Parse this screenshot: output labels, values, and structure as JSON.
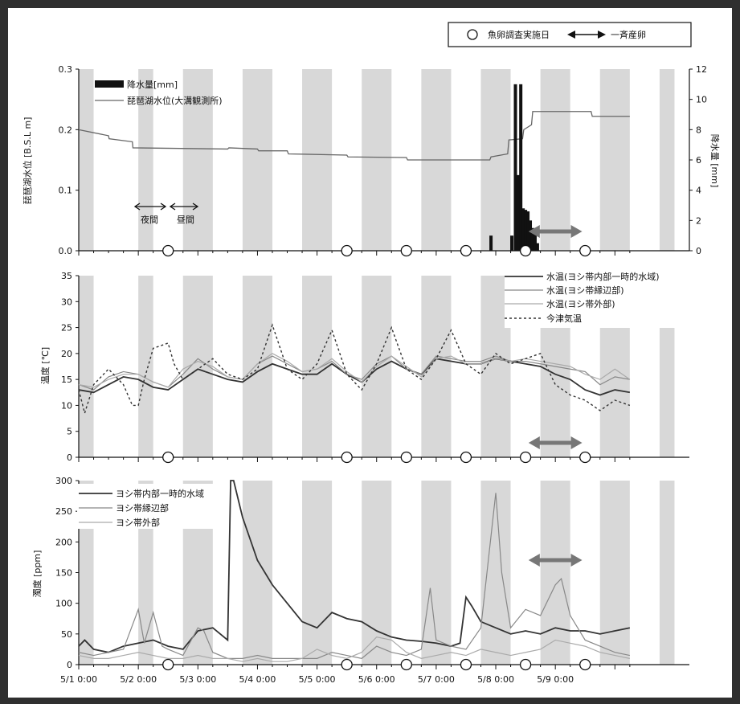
{
  "header_legend": {
    "survey_label": "魚卵調査実施日",
    "spawning_label": "一斉産卵"
  },
  "annotations": {
    "night": "夜間",
    "day": "昼間"
  },
  "survey_days": [
    2.5,
    5.5,
    6.5,
    7.5,
    8.5,
    9.5
  ],
  "spawning_period": [
    8.5,
    9.5
  ],
  "night_bands": [
    [
      0,
      0.25
    ],
    [
      1,
      1.25
    ],
    [
      1.75,
      2.25
    ],
    [
      2.75,
      3.25
    ],
    [
      3.75,
      4.25
    ],
    [
      4.75,
      5.25
    ],
    [
      5.75,
      6.25
    ],
    [
      6.75,
      7.25
    ],
    [
      7.75,
      8.25
    ],
    [
      8.75,
      9.25
    ],
    [
      9.75,
      10
    ]
  ],
  "x_axis": {
    "range": [
      1,
      11.25
    ],
    "ticks": [
      1,
      2,
      3,
      4,
      5,
      6,
      7,
      8,
      9
    ],
    "tick_labels": [
      "5/1 0:00",
      "5/2 0:00",
      "5/3 0:00",
      "5/4 0:00",
      "5/5 0:00",
      "5/6 0:00",
      "5/7 0:00",
      "5/8 0:00",
      "5/9 0:00"
    ]
  },
  "chart_data": [
    {
      "type": "line",
      "ylabel": "琵琶湖水位 [B.S.L m]",
      "y2label": "降水量 [mm]",
      "ylim": [
        0,
        0.3
      ],
      "yticks": [
        0,
        0.1,
        0.2,
        0.3
      ],
      "ytick_labels": [
        "0.0",
        "0.1",
        "0.2",
        "0.3"
      ],
      "y2lim": [
        0,
        12
      ],
      "y2ticks": [
        0,
        2,
        4,
        6,
        8,
        10,
        12
      ],
      "series": [
        {
          "name": "琵琶湖水位(大溝観測所)",
          "x": [
            1,
            1.5,
            1.51,
            1.9,
            1.91,
            3.5,
            3.52,
            4.0,
            4.02,
            4.5,
            4.52,
            5.5,
            5.52,
            6.5,
            6.52,
            7.9,
            7.92,
            8.2,
            8.22,
            8.45,
            8.47,
            8.6,
            8.62,
            9.6,
            9.62,
            10.25
          ],
          "y": [
            0.2,
            0.19,
            0.185,
            0.18,
            0.17,
            0.168,
            0.17,
            0.168,
            0.165,
            0.165,
            0.16,
            0.158,
            0.155,
            0.154,
            0.15,
            0.15,
            0.155,
            0.16,
            0.183,
            0.185,
            0.2,
            0.208,
            0.23,
            0.23,
            0.222,
            0.222
          ]
        },
        {
          "name": "降水量[mm]",
          "type": "bar",
          "x": [
            7.92,
            8.27,
            8.33,
            8.38,
            8.42,
            8.46,
            8.5,
            8.54,
            8.58,
            8.62,
            8.66,
            8.7
          ],
          "y": [
            1,
            1,
            11,
            5,
            11,
            2.8,
            2.7,
            2.6,
            2,
            1.5,
            1.2,
            0.5
          ]
        }
      ]
    },
    {
      "type": "line",
      "ylabel": "温度 [℃]",
      "ylim": [
        0,
        35
      ],
      "yticks": [
        0,
        5,
        10,
        15,
        20,
        25,
        30,
        35
      ],
      "series": [
        {
          "name": "水温(ヨシ帯内部一時的水域)",
          "x": [
            1,
            1.25,
            1.5,
            1.75,
            2,
            2.25,
            2.5,
            2.75,
            3,
            3.25,
            3.5,
            3.75,
            4,
            4.25,
            4.5,
            4.75,
            5,
            5.25,
            5.5,
            5.75,
            6,
            6.25,
            6.5,
            6.75,
            7,
            7.25,
            7.5,
            7.75,
            8,
            8.25,
            8.5,
            8.75,
            9,
            9.25,
            9.5,
            9.75,
            10,
            10.25
          ],
          "y": [
            13,
            12.5,
            14,
            15.5,
            15,
            13.5,
            13,
            15,
            17,
            16,
            15,
            14.5,
            16.5,
            18,
            17,
            16,
            16,
            18,
            16,
            14.5,
            17,
            18.5,
            17,
            16,
            19,
            18.5,
            18,
            18,
            19,
            18.5,
            18,
            17.5,
            16,
            15,
            13,
            12,
            13,
            12.5
          ]
        },
        {
          "name": "水温(ヨシ帯縁辺部)",
          "x": [
            1,
            1.25,
            1.5,
            1.75,
            2,
            2.25,
            2.5,
            2.75,
            3,
            3.25,
            3.5,
            3.75,
            4,
            4.25,
            4.5,
            4.75,
            5,
            5.25,
            5.5,
            5.75,
            6,
            6.25,
            6.5,
            6.75,
            7,
            7.25,
            7.5,
            7.75,
            8,
            8.25,
            8.5,
            8.75,
            9,
            9.25,
            9.5,
            9.75,
            10,
            10.25
          ],
          "y": [
            14,
            13,
            15.5,
            16.5,
            16,
            14.5,
            13.5,
            16,
            19,
            17,
            15.5,
            15,
            18,
            19.5,
            18,
            16.5,
            17,
            18.5,
            16,
            15,
            18,
            19.5,
            17,
            16,
            19.5,
            19,
            18.5,
            18.5,
            19.5,
            18.5,
            18.5,
            18,
            17.5,
            17,
            16.5,
            14,
            15.5,
            15
          ]
        },
        {
          "name": "水温(ヨシ帯外部)",
          "x": [
            1,
            1.25,
            1.5,
            1.75,
            2,
            2.25,
            2.5,
            2.75,
            3,
            3.25,
            3.5,
            3.75,
            4,
            4.25,
            4.5,
            4.75,
            5,
            5.25,
            5.5,
            5.75,
            6,
            6.25,
            6.5,
            6.75,
            7,
            7.25,
            7.5,
            7.75,
            8,
            8.25,
            8.5,
            8.75,
            9,
            9.25,
            9.5,
            9.75,
            10,
            10.25
          ],
          "y": [
            14,
            13.5,
            15,
            16,
            16,
            14.5,
            13.5,
            17,
            18.5,
            17.5,
            15.5,
            15,
            18,
            20,
            18.5,
            16.5,
            17,
            19,
            16.5,
            14.5,
            17.5,
            19.5,
            17.5,
            15.5,
            19,
            19.5,
            18,
            18,
            19,
            18.5,
            19,
            18.5,
            18,
            17.5,
            16,
            15,
            17,
            15
          ]
        },
        {
          "name": "今津気温",
          "x": [
            1,
            1.1,
            1.25,
            1.5,
            1.75,
            1.9,
            2,
            2.1,
            2.25,
            2.5,
            2.6,
            2.75,
            3,
            3.25,
            3.5,
            3.75,
            4,
            4.25,
            4.5,
            4.75,
            5,
            5.25,
            5.5,
            5.75,
            6,
            6.25,
            6.5,
            6.75,
            7,
            7.25,
            7.5,
            7.75,
            8,
            8.25,
            8.5,
            8.75,
            9,
            9.25,
            9.5,
            9.75,
            10,
            10.25
          ],
          "y": [
            13,
            8.5,
            14,
            17,
            14,
            10,
            10,
            15,
            21,
            22,
            18,
            15,
            17,
            19,
            16,
            15,
            17,
            25.5,
            17,
            15,
            18,
            24.5,
            16,
            13,
            18,
            25,
            17,
            15,
            19,
            24.5,
            18,
            16,
            20,
            18,
            19,
            20,
            14,
            12,
            11,
            9,
            11,
            10
          ]
        }
      ]
    },
    {
      "type": "line",
      "ylabel": "濁度 [ppm]",
      "ylim": [
        0,
        300
      ],
      "yticks": [
        0,
        50,
        100,
        150,
        200,
        250,
        300
      ],
      "series": [
        {
          "name": "ヨシ帯内部一時的水域",
          "x": [
            1,
            1.1,
            1.25,
            1.5,
            1.75,
            2,
            2.25,
            2.5,
            2.75,
            3,
            3.25,
            3.5,
            3.55,
            3.6,
            3.75,
            4,
            4.25,
            4.5,
            4.75,
            5,
            5.25,
            5.5,
            5.75,
            6,
            6.25,
            6.5,
            6.75,
            7,
            7.25,
            7.4,
            7.5,
            7.6,
            7.75,
            8,
            8.25,
            8.5,
            8.75,
            9,
            9.25,
            9.5,
            9.75,
            10,
            10.25
          ],
          "y": [
            30,
            40,
            25,
            20,
            30,
            35,
            40,
            30,
            25,
            55,
            60,
            40,
            300,
            300,
            240,
            170,
            130,
            100,
            70,
            60,
            85,
            75,
            70,
            55,
            45,
            40,
            38,
            35,
            30,
            35,
            110,
            95,
            70,
            60,
            50,
            55,
            50,
            60,
            55,
            55,
            50,
            55,
            60
          ]
        },
        {
          "name": "ヨシ帯縁辺部",
          "x": [
            1,
            1.25,
            1.5,
            1.75,
            2,
            2.1,
            2.25,
            2.4,
            2.5,
            2.75,
            3,
            3.1,
            3.25,
            3.5,
            3.75,
            4,
            4.25,
            4.5,
            4.75,
            5,
            5.25,
            5.5,
            5.75,
            6,
            6.25,
            6.5,
            6.75,
            6.9,
            7,
            7.25,
            7.5,
            7.75,
            8,
            8.1,
            8.25,
            8.5,
            8.75,
            9,
            9.1,
            9.25,
            9.5,
            9.75,
            10,
            10.25
          ],
          "y": [
            20,
            15,
            20,
            25,
            90,
            35,
            85,
            30,
            25,
            15,
            60,
            55,
            20,
            10,
            10,
            15,
            10,
            10,
            10,
            10,
            20,
            15,
            10,
            30,
            20,
            15,
            25,
            125,
            40,
            30,
            25,
            60,
            280,
            150,
            60,
            90,
            80,
            130,
            140,
            80,
            40,
            30,
            20,
            15
          ]
        },
        {
          "name": "ヨシ帯外部",
          "x": [
            1,
            1.25,
            1.5,
            1.75,
            2,
            2.25,
            2.5,
            2.75,
            3,
            3.25,
            3.5,
            3.75,
            4,
            4.25,
            4.5,
            4.75,
            5,
            5.25,
            5.5,
            5.75,
            6,
            6.25,
            6.5,
            6.75,
            7,
            7.25,
            7.5,
            7.75,
            8,
            8.25,
            8.5,
            8.75,
            9,
            9.25,
            9.5,
            9.75,
            10,
            10.25
          ],
          "y": [
            15,
            10,
            10,
            15,
            20,
            15,
            10,
            10,
            15,
            10,
            10,
            5,
            10,
            5,
            5,
            10,
            25,
            15,
            10,
            20,
            45,
            40,
            20,
            10,
            15,
            20,
            15,
            25,
            20,
            15,
            20,
            25,
            40,
            35,
            30,
            20,
            15,
            10
          ]
        }
      ]
    }
  ],
  "colors": {
    "night_band": "#d8d8d8",
    "spawning_arrow": "#777777",
    "inner": "#333333",
    "edge": "#888888",
    "outer": "#aaaaaa",
    "lake_level": "#666666",
    "precip": "#111111"
  }
}
